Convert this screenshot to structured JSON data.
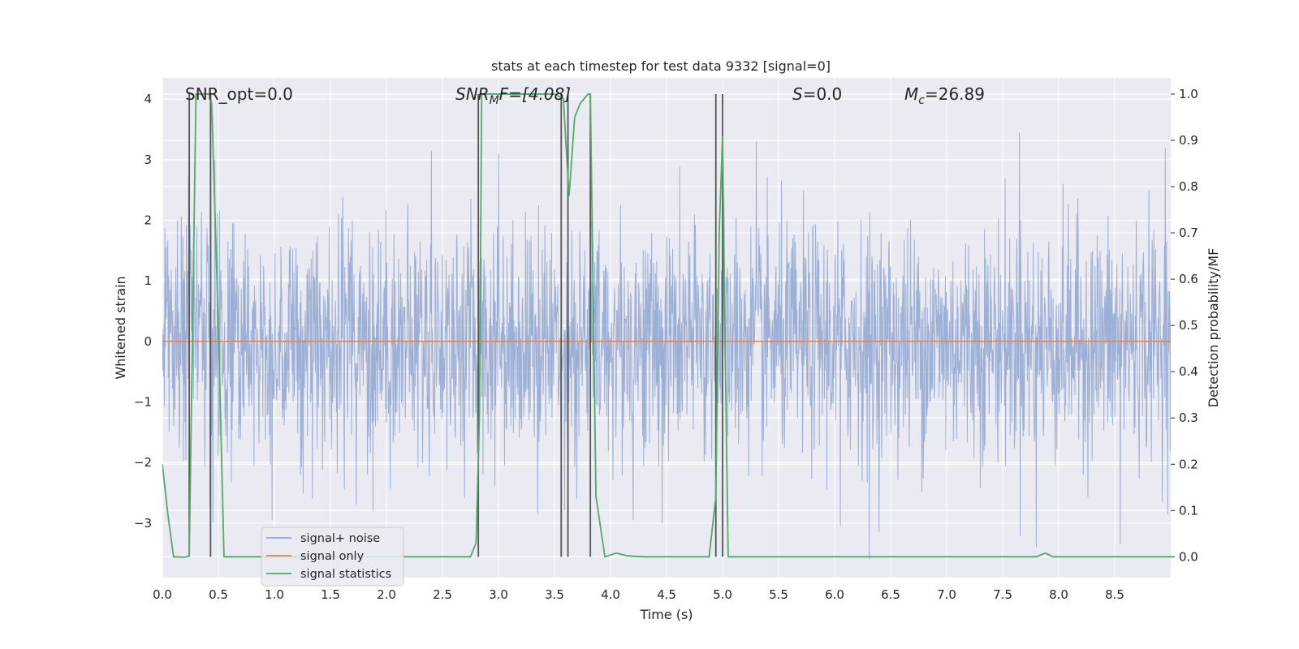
{
  "chart_data": {
    "type": "line",
    "title": "stats at each timestep for test data 9332 [signal=0]",
    "xlabel": "Time (s)",
    "ylabel_left": "Whitened strain",
    "ylabel_right": "Detection probability/MF",
    "xlim": [
      0.0,
      9.0
    ],
    "ylim_left": [
      -3.9,
      4.35
    ],
    "ylim_right": [
      -0.045,
      1.035
    ],
    "x_ticks": [
      "0.0",
      "0.5",
      "1.0",
      "1.5",
      "2.0",
      "2.5",
      "3.0",
      "3.5",
      "4.0",
      "4.5",
      "5.0",
      "5.5",
      "6.0",
      "6.5",
      "7.0",
      "7.5",
      "8.0",
      "8.5"
    ],
    "y_ticks_left": [
      "−3",
      "−2",
      "−1",
      "0",
      "1",
      "2",
      "3",
      "4"
    ],
    "y_ticks_right": [
      "0.0",
      "0.1",
      "0.2",
      "0.3",
      "0.4",
      "0.5",
      "0.6",
      "0.7",
      "0.8",
      "0.9",
      "1.0"
    ],
    "grid": true,
    "legend_position": "lower left",
    "annotations": {
      "snr_opt": "SNR_opt=0.0",
      "snr_mf_base": "SNR",
      "snr_mf_sub": "M",
      "snr_mf_rest": "F=[4.08]",
      "s_var": "S",
      "s_rest": "=0.0",
      "mc_var": "M",
      "mc_sub": "c",
      "mc_rest": "=26.89"
    },
    "series": [
      {
        "name": "signal+ noise",
        "color": "#8fa5cf",
        "description": "whitened strain noise, approx. std 1, peaks near 3.5 and -3.6",
        "noise_std": 1.0,
        "peaks": [
          [
            0.43,
            3.8
          ],
          [
            0.47,
            3.0
          ],
          [
            2.4,
            3.15
          ],
          [
            3.0,
            3.1
          ],
          [
            5.3,
            3.3
          ],
          [
            7.65,
            3.45
          ],
          [
            8.95,
            3.2
          ],
          [
            0.98,
            -2.95
          ],
          [
            1.88,
            -2.8
          ],
          [
            3.35,
            -2.85
          ],
          [
            4.46,
            -3.0
          ],
          [
            6.31,
            -3.6
          ],
          [
            7.8,
            -3.4
          ],
          [
            8.55,
            -3.35
          ],
          [
            0.45,
            -3.0
          ],
          [
            4.2,
            -2.95
          ],
          [
            6.05,
            -3.05
          ],
          [
            1.73,
            -2.7
          ],
          [
            3.7,
            -2.6
          ]
        ]
      },
      {
        "name": "signal only",
        "color": "#dd8452",
        "x": [
          0.0,
          9.0
        ],
        "y": [
          0.0,
          0.0
        ]
      },
      {
        "name": "signal statistics",
        "color": "#55a868",
        "axis": "right",
        "x": [
          0.0,
          0.05,
          0.1,
          0.2,
          0.24,
          0.3,
          0.42,
          0.44,
          0.5,
          0.55,
          0.6,
          1.0,
          1.5,
          2.0,
          2.5,
          2.75,
          2.8,
          2.83,
          2.85,
          3.0,
          3.5,
          3.58,
          3.6,
          3.63,
          3.68,
          3.73,
          3.8,
          3.82,
          3.87,
          3.95,
          4.05,
          4.15,
          4.3,
          4.5,
          4.88,
          4.94,
          4.97,
          5.0,
          5.02,
          5.05,
          5.5,
          6.0,
          7.0,
          7.5,
          7.8,
          7.88,
          7.95,
          8.0,
          8.5,
          9.0
        ],
        "y": [
          0.2,
          0.09,
          0.0,
          -0.001,
          0.002,
          1.0,
          1.0,
          0.98,
          0.5,
          0.0,
          0.0,
          0.0,
          0.0,
          0.0,
          0.0,
          0.0,
          0.03,
          0.3,
          1.0,
          1.0,
          1.0,
          0.99,
          0.9,
          0.78,
          0.95,
          0.98,
          1.0,
          1.0,
          0.13,
          0.0,
          0.008,
          0.002,
          0.0,
          0.0,
          0.0,
          0.13,
          0.7,
          0.91,
          0.5,
          0.0,
          0.0,
          0.0,
          0.0,
          0.0,
          0.0,
          0.008,
          0.0,
          0.0,
          0.0,
          0.0
        ]
      }
    ],
    "vertical_markers": {
      "color": "#555555",
      "x": [
        0.24,
        0.43,
        2.82,
        3.56,
        3.62,
        3.82,
        4.94,
        5.0
      ]
    }
  },
  "legend": {
    "items": [
      "signal+ noise",
      "signal only",
      "signal statistics"
    ]
  }
}
